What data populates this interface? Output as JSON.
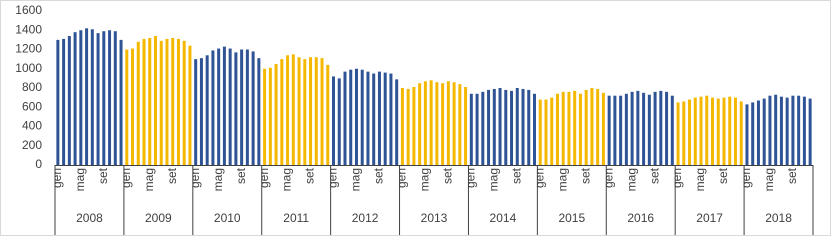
{
  "chart_data": {
    "type": "grouped-bar",
    "ylim": [
      0,
      1600
    ],
    "yticks": [
      0,
      200,
      400,
      600,
      800,
      1000,
      1200,
      1400,
      1600
    ],
    "grid": false,
    "groups": [
      {
        "label": "2008",
        "color": "#2f5496",
        "categories": [
          "gen",
          null,
          null,
          null,
          "mag",
          null,
          null,
          null,
          "set",
          null,
          null,
          null
        ],
        "values": [
          1300,
          1310,
          1340,
          1380,
          1400,
          1420,
          1410,
          1370,
          1390,
          1400,
          1390,
          1300
        ]
      },
      {
        "label": "2009",
        "color": "#f5b800",
        "categories": [
          "gen",
          null,
          null,
          null,
          "mag",
          null,
          null,
          null,
          "set",
          null,
          null,
          null
        ],
        "values": [
          1200,
          1210,
          1280,
          1310,
          1320,
          1340,
          1290,
          1310,
          1320,
          1310,
          1290,
          1240
        ]
      },
      {
        "label": "2010",
        "color": "#2f5496",
        "categories": [
          "gen",
          null,
          null,
          null,
          "mag",
          null,
          null,
          null,
          "set",
          null,
          null,
          null
        ],
        "values": [
          1100,
          1110,
          1140,
          1190,
          1210,
          1230,
          1210,
          1170,
          1200,
          1200,
          1180,
          1110
        ]
      },
      {
        "label": "2011",
        "color": "#f5b800",
        "categories": [
          "gen",
          null,
          null,
          null,
          "mag",
          null,
          null,
          null,
          "set",
          null,
          null,
          null
        ],
        "values": [
          1000,
          1010,
          1050,
          1100,
          1140,
          1150,
          1120,
          1100,
          1120,
          1120,
          1110,
          1040
        ]
      },
      {
        "label": "2012",
        "color": "#2f5496",
        "categories": [
          "gen",
          null,
          null,
          null,
          "mag",
          null,
          null,
          null,
          "set",
          null,
          null,
          null
        ],
        "values": [
          920,
          900,
          970,
          990,
          1000,
          990,
          970,
          950,
          970,
          960,
          950,
          890
        ]
      },
      {
        "label": "2013",
        "color": "#f5b800",
        "categories": [
          "gen",
          null,
          null,
          null,
          "mag",
          null,
          null,
          null,
          "set",
          null,
          null,
          null
        ],
        "values": [
          800,
          790,
          810,
          850,
          870,
          880,
          860,
          850,
          870,
          860,
          840,
          810
        ]
      },
      {
        "label": "2014",
        "color": "#2f5496",
        "categories": [
          "gen",
          null,
          null,
          null,
          "mag",
          null,
          null,
          null,
          "set",
          null,
          null,
          null
        ],
        "values": [
          740,
          740,
          760,
          780,
          790,
          800,
          780,
          770,
          800,
          790,
          780,
          740
        ]
      },
      {
        "label": "2015",
        "color": "#f5b800",
        "categories": [
          "gen",
          null,
          null,
          null,
          "mag",
          null,
          null,
          null,
          "set",
          null,
          null,
          null
        ],
        "values": [
          680,
          680,
          700,
          740,
          760,
          760,
          770,
          740,
          780,
          800,
          790,
          750
        ]
      },
      {
        "label": "2016",
        "color": "#2f5496",
        "categories": [
          "gen",
          null,
          null,
          null,
          "mag",
          null,
          null,
          null,
          "set",
          null,
          null,
          null
        ],
        "values": [
          720,
          720,
          720,
          740,
          760,
          770,
          750,
          730,
          760,
          770,
          760,
          720
        ]
      },
      {
        "label": "2017",
        "color": "#f5b800",
        "categories": [
          "gen",
          null,
          null,
          null,
          "mag",
          null,
          null,
          null,
          "set",
          null,
          null,
          null
        ],
        "values": [
          650,
          660,
          680,
          700,
          710,
          720,
          700,
          690,
          700,
          710,
          700,
          660
        ]
      },
      {
        "label": "2018",
        "color": "#2f5496",
        "categories": [
          "gen",
          null,
          null,
          null,
          "mag",
          null,
          null,
          null,
          "set",
          null,
          null,
          null
        ],
        "values": [
          630,
          650,
          670,
          690,
          720,
          730,
          710,
          700,
          720,
          720,
          710,
          690
        ]
      }
    ]
  }
}
